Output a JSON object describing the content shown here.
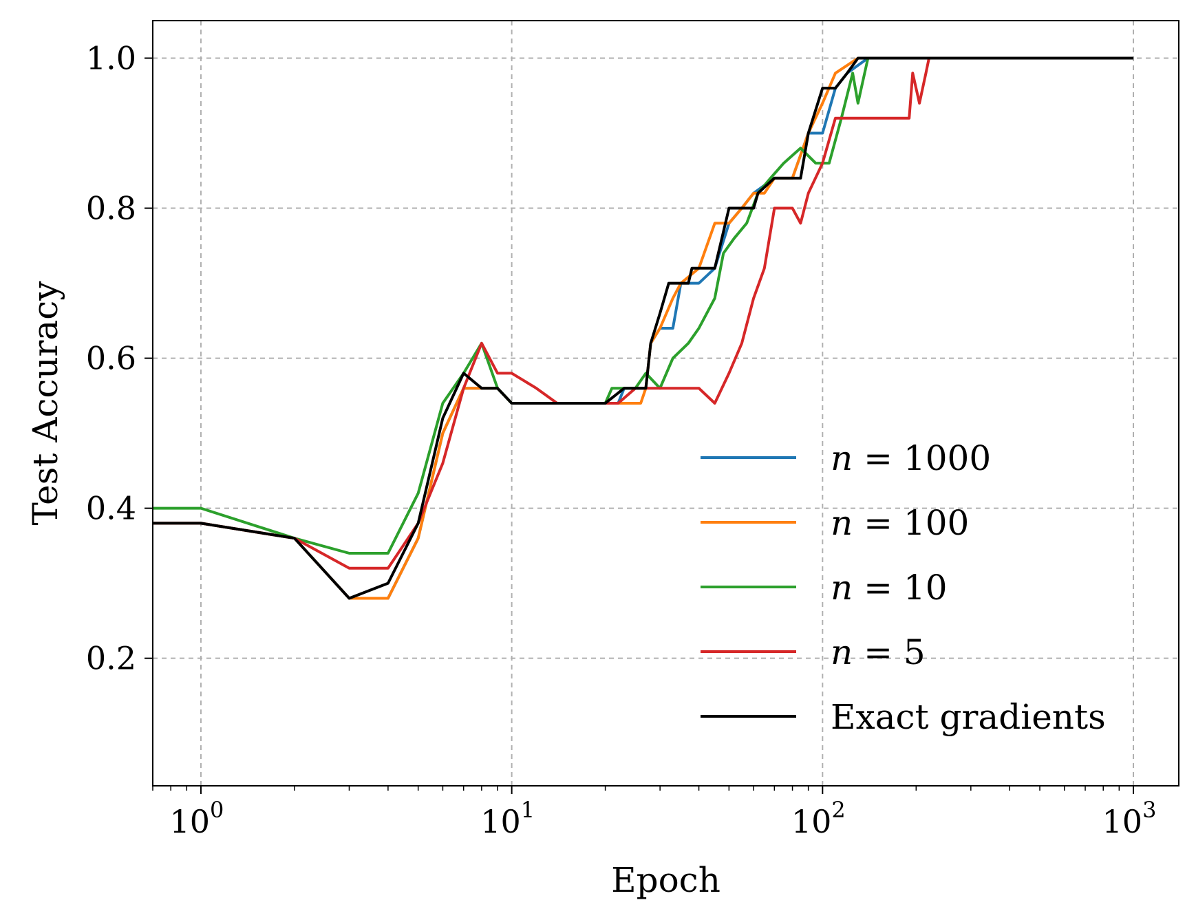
{
  "chart_data": {
    "type": "line",
    "title": "",
    "xlabel": "Epoch",
    "ylabel": "Test Accuracy",
    "xscale": "log",
    "xlim": [
      0.7,
      1400
    ],
    "ylim": [
      0.03,
      1.05
    ],
    "grid": true,
    "legend_position": "lower-right",
    "xticks": [
      {
        "value": 1,
        "base": "10",
        "exp": "0"
      },
      {
        "value": 10,
        "base": "10",
        "exp": "1"
      },
      {
        "value": 100,
        "base": "10",
        "exp": "2"
      },
      {
        "value": 1000,
        "base": "10",
        "exp": "3"
      }
    ],
    "yticks": [
      {
        "value": 0.2,
        "label": "0.2"
      },
      {
        "value": 0.4,
        "label": "0.4"
      },
      {
        "value": 0.6,
        "label": "0.6"
      },
      {
        "value": 0.8,
        "label": "0.8"
      },
      {
        "value": 1.0,
        "label": "1.0"
      }
    ],
    "series": [
      {
        "name": "n = 1000",
        "legend_var": "n",
        "legend_rest": " = 1000",
        "color": "#1f77b4",
        "points": [
          [
            0.7,
            0.38
          ],
          [
            1,
            0.38
          ],
          [
            2,
            0.36
          ],
          [
            3,
            0.28
          ],
          [
            4,
            0.28
          ],
          [
            5,
            0.36
          ],
          [
            6,
            0.5
          ],
          [
            7,
            0.56
          ],
          [
            8,
            0.56
          ],
          [
            9,
            0.56
          ],
          [
            10,
            0.54
          ],
          [
            20,
            0.54
          ],
          [
            22,
            0.54
          ],
          [
            23,
            0.56
          ],
          [
            27,
            0.56
          ],
          [
            28,
            0.62
          ],
          [
            30,
            0.64
          ],
          [
            33,
            0.64
          ],
          [
            35,
            0.7
          ],
          [
            40,
            0.7
          ],
          [
            45,
            0.72
          ],
          [
            50,
            0.78
          ],
          [
            55,
            0.8
          ],
          [
            60,
            0.82
          ],
          [
            70,
            0.84
          ],
          [
            80,
            0.84
          ],
          [
            90,
            0.9
          ],
          [
            100,
            0.9
          ],
          [
            110,
            0.96
          ],
          [
            120,
            0.98
          ],
          [
            140,
            1.0
          ],
          [
            1000,
            1.0
          ]
        ]
      },
      {
        "name": "n = 100",
        "legend_var": "n",
        "legend_rest": " = 100",
        "color": "#ff7f0e",
        "points": [
          [
            0.7,
            0.38
          ],
          [
            1,
            0.38
          ],
          [
            2,
            0.36
          ],
          [
            3,
            0.28
          ],
          [
            4,
            0.28
          ],
          [
            5,
            0.36
          ],
          [
            6,
            0.5
          ],
          [
            7,
            0.56
          ],
          [
            8,
            0.56
          ],
          [
            9,
            0.56
          ],
          [
            10,
            0.54
          ],
          [
            20,
            0.54
          ],
          [
            22,
            0.54
          ],
          [
            26,
            0.54
          ],
          [
            27,
            0.56
          ],
          [
            28,
            0.62
          ],
          [
            30,
            0.64
          ],
          [
            33,
            0.68
          ],
          [
            35,
            0.7
          ],
          [
            40,
            0.72
          ],
          [
            45,
            0.78
          ],
          [
            50,
            0.78
          ],
          [
            55,
            0.8
          ],
          [
            60,
            0.82
          ],
          [
            65,
            0.82
          ],
          [
            70,
            0.84
          ],
          [
            80,
            0.84
          ],
          [
            90,
            0.9
          ],
          [
            100,
            0.94
          ],
          [
            110,
            0.98
          ],
          [
            130,
            1.0
          ],
          [
            1000,
            1.0
          ]
        ]
      },
      {
        "name": "n = 10",
        "legend_var": "n",
        "legend_rest": " = 10",
        "color": "#2ca02c",
        "points": [
          [
            0.7,
            0.4
          ],
          [
            1,
            0.4
          ],
          [
            2,
            0.36
          ],
          [
            3,
            0.34
          ],
          [
            4,
            0.34
          ],
          [
            5,
            0.42
          ],
          [
            6,
            0.54
          ],
          [
            7,
            0.58
          ],
          [
            8,
            0.62
          ],
          [
            9,
            0.56
          ],
          [
            10,
            0.54
          ],
          [
            20,
            0.54
          ],
          [
            21,
            0.56
          ],
          [
            25,
            0.56
          ],
          [
            27,
            0.58
          ],
          [
            30,
            0.56
          ],
          [
            33,
            0.6
          ],
          [
            37,
            0.62
          ],
          [
            40,
            0.64
          ],
          [
            45,
            0.68
          ],
          [
            48,
            0.74
          ],
          [
            52,
            0.76
          ],
          [
            57,
            0.78
          ],
          [
            62,
            0.82
          ],
          [
            68,
            0.84
          ],
          [
            75,
            0.86
          ],
          [
            85,
            0.88
          ],
          [
            95,
            0.86
          ],
          [
            105,
            0.86
          ],
          [
            115,
            0.92
          ],
          [
            125,
            0.98
          ],
          [
            130,
            0.94
          ],
          [
            140,
            1.0
          ],
          [
            1000,
            1.0
          ]
        ]
      },
      {
        "name": "n = 5",
        "legend_var": "n",
        "legend_rest": " = 5",
        "color": "#d62728",
        "points": [
          [
            0.7,
            0.38
          ],
          [
            1,
            0.38
          ],
          [
            2,
            0.36
          ],
          [
            3,
            0.32
          ],
          [
            4,
            0.32
          ],
          [
            5,
            0.38
          ],
          [
            6,
            0.46
          ],
          [
            7,
            0.56
          ],
          [
            8,
            0.62
          ],
          [
            9,
            0.58
          ],
          [
            10,
            0.58
          ],
          [
            12,
            0.56
          ],
          [
            14,
            0.54
          ],
          [
            20,
            0.54
          ],
          [
            22,
            0.54
          ],
          [
            25,
            0.56
          ],
          [
            40,
            0.56
          ],
          [
            45,
            0.54
          ],
          [
            50,
            0.58
          ],
          [
            55,
            0.62
          ],
          [
            60,
            0.68
          ],
          [
            65,
            0.72
          ],
          [
            70,
            0.8
          ],
          [
            80,
            0.8
          ],
          [
            85,
            0.78
          ],
          [
            90,
            0.82
          ],
          [
            100,
            0.86
          ],
          [
            110,
            0.92
          ],
          [
            130,
            0.92
          ],
          [
            190,
            0.92
          ],
          [
            195,
            0.98
          ],
          [
            205,
            0.94
          ],
          [
            215,
            0.98
          ],
          [
            220,
            1.0
          ],
          [
            1000,
            1.0
          ]
        ]
      },
      {
        "name": "Exact gradients",
        "legend_var": "",
        "legend_rest": "Exact gradients",
        "color": "#000000",
        "points": [
          [
            0.7,
            0.38
          ],
          [
            1,
            0.38
          ],
          [
            2,
            0.36
          ],
          [
            3,
            0.28
          ],
          [
            4,
            0.3
          ],
          [
            5,
            0.38
          ],
          [
            6,
            0.52
          ],
          [
            7,
            0.58
          ],
          [
            8,
            0.56
          ],
          [
            9,
            0.56
          ],
          [
            10,
            0.54
          ],
          [
            20,
            0.54
          ],
          [
            23,
            0.56
          ],
          [
            27,
            0.56
          ],
          [
            28,
            0.62
          ],
          [
            30,
            0.66
          ],
          [
            32,
            0.7
          ],
          [
            37,
            0.7
          ],
          [
            38,
            0.72
          ],
          [
            45,
            0.72
          ],
          [
            50,
            0.8
          ],
          [
            60,
            0.8
          ],
          [
            62,
            0.82
          ],
          [
            70,
            0.84
          ],
          [
            85,
            0.84
          ],
          [
            90,
            0.9
          ],
          [
            100,
            0.96
          ],
          [
            110,
            0.96
          ],
          [
            120,
            0.98
          ],
          [
            130,
            1.0
          ],
          [
            1000,
            1.0
          ]
        ]
      }
    ]
  }
}
